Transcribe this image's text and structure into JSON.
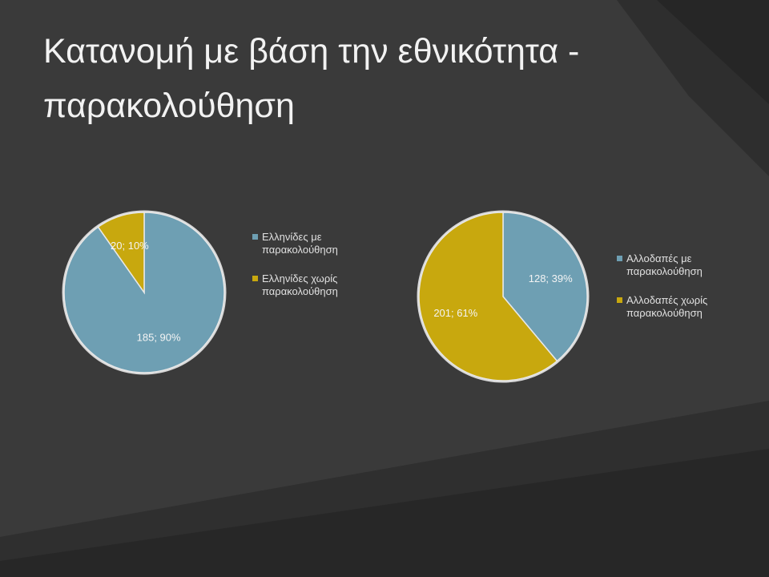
{
  "slide": {
    "title": "Κατανομή με βάση την εθνικότητα - παρακολούθηση"
  },
  "chart_data": [
    {
      "type": "pie",
      "categories": [
        "Ελληνίδες με παρακολούθηση",
        "Ελληνίδες χωρίς παρακολούθηση"
      ],
      "values": [
        185,
        20
      ],
      "value_labels": [
        "185; 90%",
        "20; 10%"
      ],
      "colors": [
        "#6e9fb3",
        "#c8a80e"
      ],
      "legend": "right"
    },
    {
      "type": "pie",
      "categories": [
        "Αλλοδαπές με παρακολούθηση",
        "Αλλοδαπές χωρίς παρακολούθηση"
      ],
      "values": [
        128,
        201
      ],
      "value_labels": [
        "128; 39%",
        "201; 61%"
      ],
      "colors": [
        "#6e9fb3",
        "#c8a80e"
      ],
      "legend": "right"
    }
  ]
}
